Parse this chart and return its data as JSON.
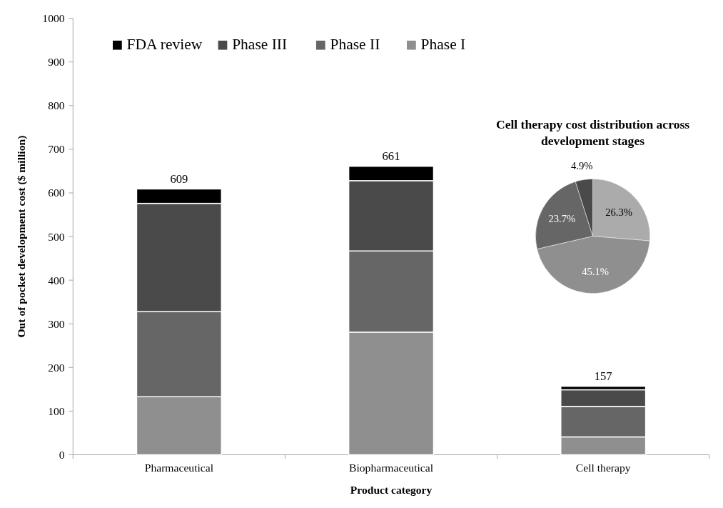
{
  "chart_data": [
    {
      "type": "bar",
      "stacked": true,
      "xlabel": "Product category",
      "ylabel": "Out of pocket development cost ($ million)",
      "categories": [
        "Pharmaceutical",
        "Biopharmaceutical",
        "Cell therapy"
      ],
      "series": [
        {
          "name": "Phase I",
          "color": "#8f8f8f",
          "values": [
            133,
            281,
            41
          ]
        },
        {
          "name": "Phase II",
          "color": "#666666",
          "values": [
            195,
            186,
            70
          ]
        },
        {
          "name": "Phase III",
          "color": "#4a4a4a",
          "values": [
            248,
            161,
            38
          ]
        },
        {
          "name": "FDA review",
          "color": "#000000",
          "values": [
            33,
            33,
            8
          ]
        }
      ],
      "totals": [
        "609",
        "661",
        "157"
      ],
      "ylim": [
        0,
        1000
      ],
      "yticks": [
        0,
        100,
        200,
        300,
        400,
        500,
        600,
        700,
        800,
        900,
        1000
      ],
      "grid": false,
      "legend": "top left"
    },
    {
      "type": "pie",
      "title": "Cell therapy cost distribution across development stages",
      "categories": [
        null,
        null,
        null,
        null
      ],
      "values": [
        26.3,
        45.1,
        23.7,
        4.9
      ],
      "colors": [
        "#ababab",
        "#8f8f8f",
        "#666666",
        "#4a4a4a"
      ],
      "value_labels": [
        "26.3%",
        "45.1%",
        "23.7%",
        "4.9%"
      ]
    }
  ]
}
